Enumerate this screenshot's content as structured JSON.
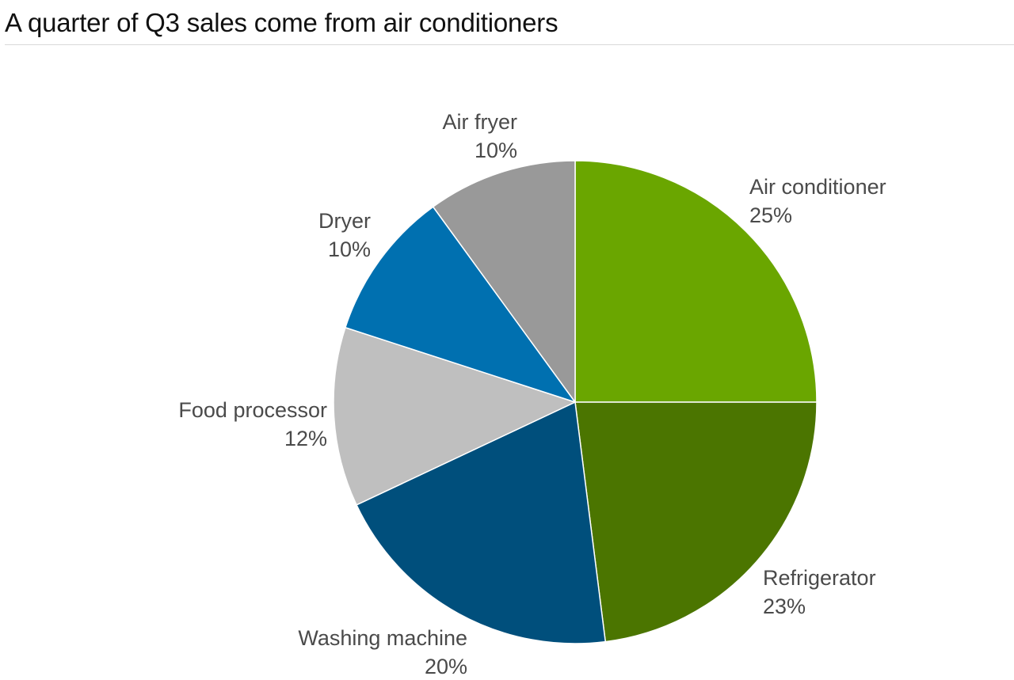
{
  "title": "A quarter of Q3 sales come from air conditioners",
  "colors": {
    "air_conditioner": "#6aa600",
    "refrigerator": "#4b7500",
    "washing_machine": "#004f7c",
    "food_processor": "#bfbfbf",
    "dryer": "#0070b0",
    "air_fryer": "#999999",
    "label_text": "#4a4a4a",
    "slice_border": "#ffffff"
  },
  "chart_data": {
    "type": "pie",
    "start": "12 o'clock",
    "direction": "clockwise",
    "legend": "none",
    "slices": [
      {
        "name": "Air conditioner",
        "value": 25,
        "label": "25%",
        "color": "#6aa600"
      },
      {
        "name": "Refrigerator",
        "value": 23,
        "label": "23%",
        "color": "#4b7500"
      },
      {
        "name": "Washing machine",
        "value": 20,
        "label": "20%",
        "color": "#004f7c"
      },
      {
        "name": "Food processor",
        "value": 12,
        "label": "12%",
        "color": "#bfbfbf"
      },
      {
        "name": "Dryer",
        "value": 10,
        "label": "10%",
        "color": "#0070b0"
      },
      {
        "name": "Air fryer",
        "value": 10,
        "label": "10%",
        "color": "#999999"
      }
    ]
  }
}
